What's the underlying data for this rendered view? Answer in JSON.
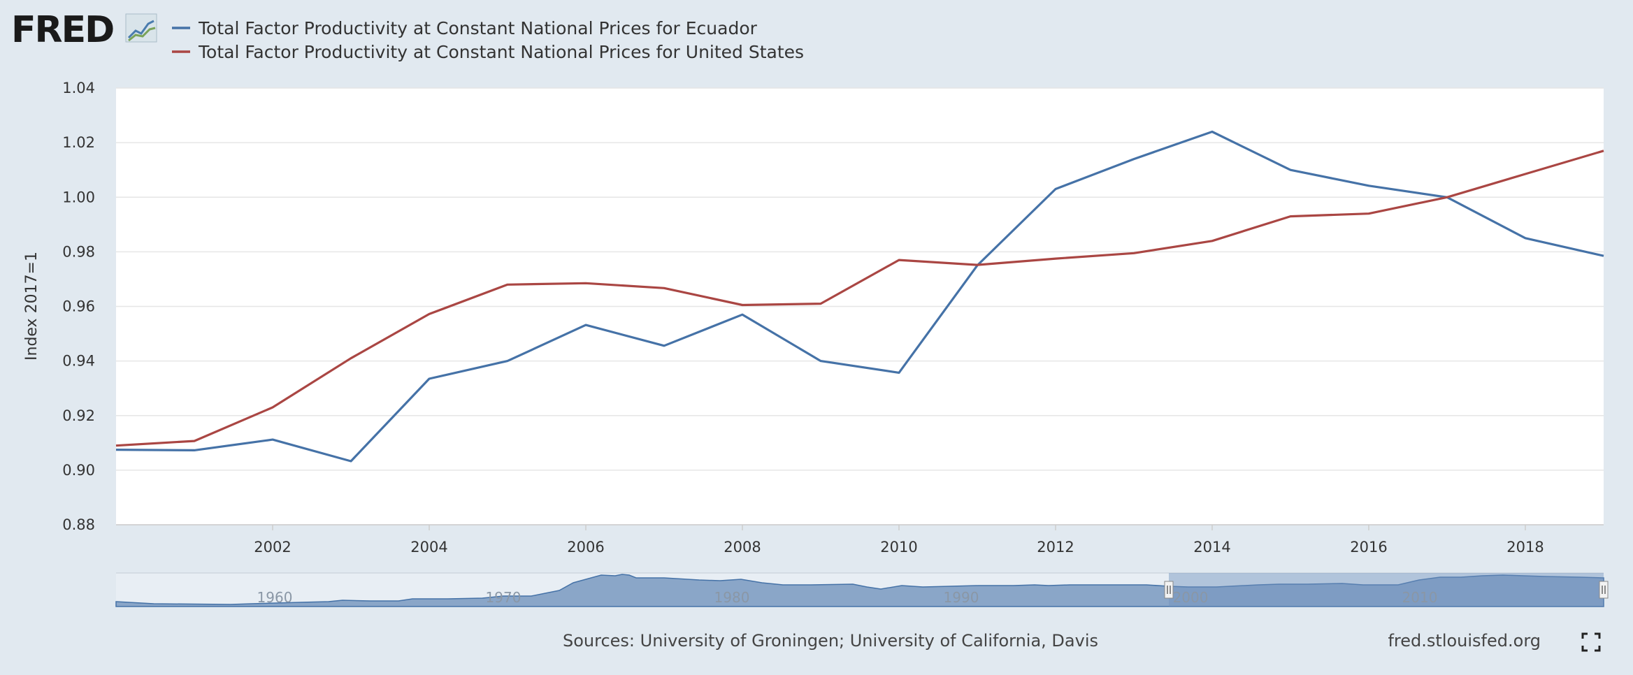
{
  "brand": {
    "logo_text": "FRED",
    "logo_mark": "chart-line-icon"
  },
  "chart_data": {
    "type": "line",
    "title": "",
    "ylabel": "Index 2017=1",
    "xlabel": "",
    "x": [
      2000,
      2001,
      2002,
      2003,
      2004,
      2005,
      2006,
      2007,
      2008,
      2009,
      2010,
      2011,
      2012,
      2013,
      2014,
      2015,
      2016,
      2017,
      2018,
      2019
    ],
    "xlim": [
      2000,
      2019
    ],
    "ylim": [
      0.88,
      1.04
    ],
    "y_ticks": [
      "0.88",
      "0.90",
      "0.92",
      "0.94",
      "0.96",
      "0.98",
      "1.00",
      "1.02",
      "1.04"
    ],
    "x_ticks": [
      "2002",
      "2004",
      "2006",
      "2008",
      "2010",
      "2012",
      "2014",
      "2016",
      "2018"
    ],
    "grid": true,
    "legend_position": "top-left",
    "series": [
      {
        "name": "Total Factor Productivity at Constant National Prices for Ecuador",
        "color": "#4572a7",
        "values": [
          0.9075,
          0.9073,
          0.9112,
          0.9033,
          0.9335,
          0.94,
          0.9532,
          0.9456,
          0.957,
          0.94,
          0.9357,
          0.975,
          1.003,
          1.014,
          1.024,
          1.01,
          1.0042,
          1.0,
          0.985,
          0.9785
        ]
      },
      {
        "name": "Total Factor Productivity at Constant National Prices for United States",
        "color": "#aa4643",
        "values": [
          0.909,
          0.9107,
          0.923,
          0.941,
          0.9572,
          0.968,
          0.9685,
          0.9667,
          0.9605,
          0.961,
          0.977,
          0.9752,
          0.9775,
          0.9795,
          0.984,
          0.993,
          0.994,
          1.0,
          1.0085,
          1.017
        ]
      }
    ]
  },
  "navigator": {
    "labels": [
      "1960",
      "1970",
      "1980",
      "1990",
      "2000",
      "2010"
    ],
    "handle_left": "handle-left",
    "handle_right": "handle-right"
  },
  "footer": {
    "sources": "Sources: University of Groningen; University of California, Davis",
    "site": "fred.stlouisfed.org",
    "fullscreen_icon": "fullscreen-icon"
  }
}
